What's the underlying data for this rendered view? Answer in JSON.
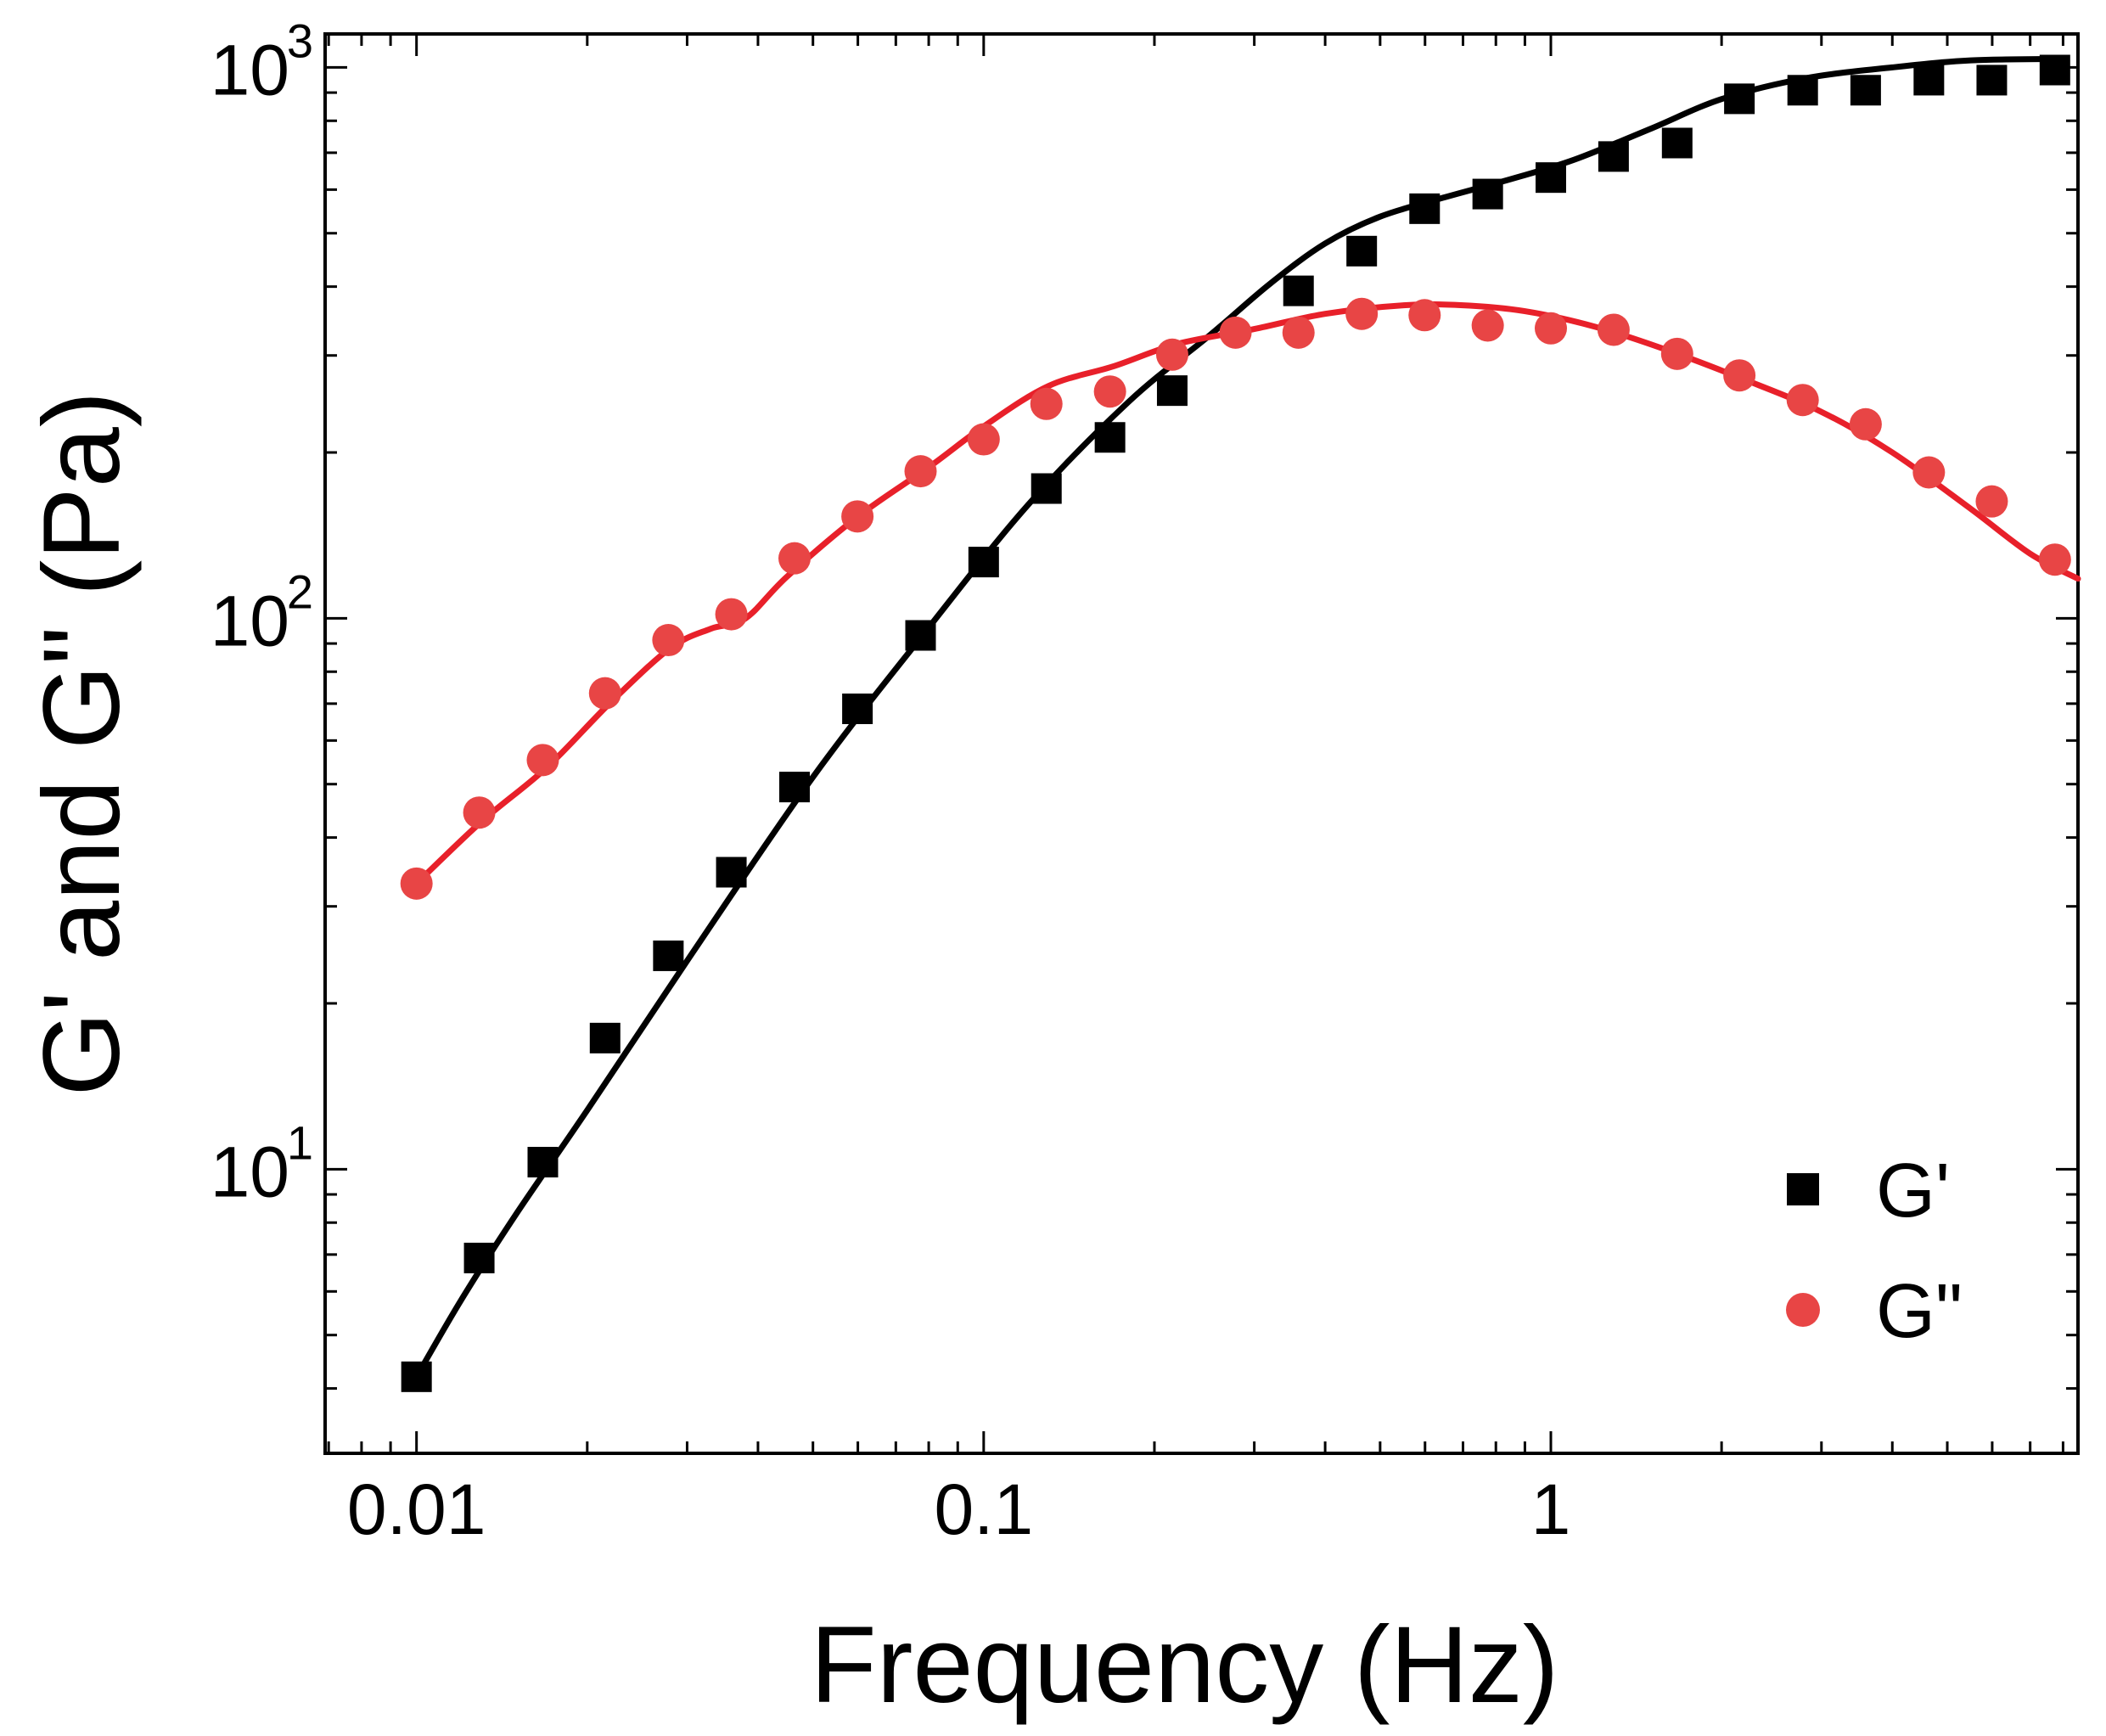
{
  "chart_data": {
    "type": "scatter",
    "title": "",
    "xlabel": "Frequency (Hz)",
    "ylabel": "G' and G\" (Pa)",
    "xscale": "log",
    "yscale": "log",
    "xlim": [
      0.0069,
      8.5
    ],
    "ylim": [
      3.05,
      1150
    ],
    "grid": false,
    "legend_position": "bottom-right",
    "x_ticks": [
      {
        "value": 0.01,
        "label": "0.01"
      },
      {
        "value": 0.1,
        "label": "0.1"
      },
      {
        "value": 1,
        "label": "1"
      }
    ],
    "y_ticks": [
      {
        "value": 10,
        "base": "10",
        "exp": "1"
      },
      {
        "value": 100,
        "base": "10",
        "exp": "2"
      },
      {
        "value": 1000,
        "base": "10",
        "exp": "3"
      }
    ],
    "series": [
      {
        "name": "G'",
        "marker": "square",
        "color": "#000000",
        "x": [
          0.01,
          0.0129,
          0.0167,
          0.0215,
          0.0278,
          0.0359,
          0.0464,
          0.0599,
          0.0774,
          0.1,
          0.129,
          0.167,
          0.215,
          0.278,
          0.359,
          0.464,
          0.599,
          0.774,
          1.0,
          1.29,
          1.67,
          2.15,
          2.78,
          3.59,
          4.64,
          5.99,
          7.74
        ],
        "values": [
          4.2,
          6.9,
          10.3,
          17.3,
          24.4,
          34.6,
          49.4,
          68.5,
          93.1,
          126.5,
          172,
          213,
          259,
          null,
          393,
          464,
          554,
          589,
          631,
          689,
          729,
          877,
          909,
          909,
          948,
          948,
          989
        ],
        "fit_x": [
          0.01,
          0.012,
          0.015,
          0.02,
          0.03,
          0.05,
          0.08,
          0.12,
          0.18,
          0.25,
          0.32,
          0.4,
          0.5,
          0.65,
          0.85,
          1.1,
          1.5,
          2.0,
          2.8,
          4.0,
          5.5,
          7.74
        ],
        "fit_values": [
          4.2,
          5.8,
          8.3,
          12.8,
          23.9,
          51.5,
          96.2,
          161,
          247,
          326,
          405,
          479,
          536,
          581,
          627,
          680,
          774,
          876,
          955,
          1000,
          1030,
          1036
        ]
      },
      {
        "name": "G\"",
        "marker": "circle",
        "color": "#e84545",
        "x": [
          0.01,
          0.0129,
          0.0167,
          0.0215,
          0.0278,
          0.0359,
          0.0464,
          0.0599,
          0.0774,
          0.1,
          0.129,
          0.167,
          0.215,
          0.278,
          0.359,
          0.464,
          0.599,
          0.774,
          1.0,
          1.29,
          1.67,
          2.15,
          2.78,
          3.59,
          4.64,
          5.99,
          7.74
        ],
        "values": [
          33.0,
          44.4,
          55.3,
          73.1,
          91.3,
          101.7,
          128.5,
          153.1,
          184.9,
          211.3,
          245,
          258,
          301,
          330,
          330,
          357,
          355,
          340,
          336,
          334,
          302,
          276,
          249,
          225,
          184,
          163,
          127.8
        ],
        "fit_x": [
          0.01,
          0.013,
          0.017,
          0.022,
          0.028,
          0.033,
          0.038,
          0.045,
          0.06,
          0.08,
          0.1,
          0.13,
          0.17,
          0.22,
          0.3,
          0.4,
          0.55,
          0.7,
          0.9,
          1.2,
          1.6,
          2.2,
          3.0,
          4.0,
          5.5,
          7.0,
          8.5
        ],
        "fit_values": [
          33.0,
          42.7,
          53.7,
          70.4,
          88.2,
          95.7,
          99.9,
          119,
          153,
          188,
          223,
          264,
          287,
          315,
          335,
          357,
          370,
          370,
          361,
          338,
          307,
          271,
          237,
          200,
          158,
          131,
          118
        ]
      }
    ]
  }
}
